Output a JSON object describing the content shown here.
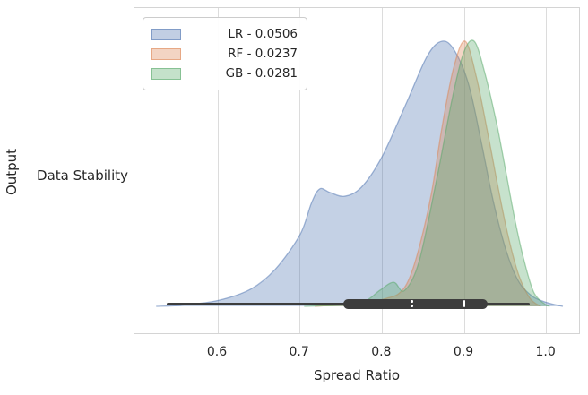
{
  "figure": {
    "background": "#ffffff",
    "plot_border_color": "#d4d4d4",
    "grid_color": "#dcdcdc",
    "text_color": "#262626",
    "box_overlay_color": "#3d3d3d"
  },
  "axes": {
    "xlabel": "Spread Ratio",
    "ylabel": "Output",
    "ytick_label": "Data Stability"
  },
  "legend": {
    "items": [
      {
        "label": "LR - 0.0506",
        "fill": "rgba(76,114,176,0.35)",
        "border": "rgba(76,114,176,0.55)"
      },
      {
        "label": "RF - 0.0237",
        "fill": "rgba(221,132,82,0.35)",
        "border": "rgba(221,132,82,0.55)"
      },
      {
        "label": "GB - 0.0281",
        "fill": "rgba(85,168,104,0.35)",
        "border": "rgba(85,168,104,0.55)"
      }
    ]
  },
  "chart_data": {
    "type": "area",
    "subtype": "kde-density",
    "title": "",
    "xlabel": "Spread Ratio",
    "ylabel": "Output",
    "category_row_label": "Data Stability",
    "xlim": [
      0.498,
      1.043
    ],
    "xticks": [
      0.6,
      0.7,
      0.8,
      0.9,
      1.0
    ],
    "grid": "vertical-only",
    "legend_position": "upper-left",
    "series": [
      {
        "name": "LR",
        "legend_label": "LR - 0.0506",
        "color": "#4c72b0",
        "points": [
          [
            0.525,
            0
          ],
          [
            0.555,
            0.004
          ],
          [
            0.6,
            0.022
          ],
          [
            0.64,
            0.065
          ],
          [
            0.67,
            0.14
          ],
          [
            0.7,
            0.27
          ],
          [
            0.714,
            0.39
          ],
          [
            0.724,
            0.443
          ],
          [
            0.736,
            0.43
          ],
          [
            0.754,
            0.415
          ],
          [
            0.775,
            0.45
          ],
          [
            0.8,
            0.565
          ],
          [
            0.83,
            0.77
          ],
          [
            0.855,
            0.945
          ],
          [
            0.873,
            1.0
          ],
          [
            0.888,
            0.965
          ],
          [
            0.905,
            0.84
          ],
          [
            0.92,
            0.63
          ],
          [
            0.935,
            0.4
          ],
          [
            0.95,
            0.22
          ],
          [
            0.965,
            0.1
          ],
          [
            0.982,
            0.04
          ],
          [
            1.0,
            0.015
          ],
          [
            1.02,
            0
          ]
        ]
      },
      {
        "name": "RF",
        "legend_label": "RF - 0.0237",
        "color": "#dd8452",
        "points": [
          [
            0.718,
            0
          ],
          [
            0.78,
            0.014
          ],
          [
            0.805,
            0.03
          ],
          [
            0.821,
            0.05
          ],
          [
            0.833,
            0.105
          ],
          [
            0.846,
            0.233
          ],
          [
            0.86,
            0.426
          ],
          [
            0.873,
            0.679
          ],
          [
            0.887,
            0.9
          ],
          [
            0.901,
            1.0
          ],
          [
            0.915,
            0.86
          ],
          [
            0.93,
            0.63
          ],
          [
            0.941,
            0.45
          ],
          [
            0.953,
            0.27
          ],
          [
            0.966,
            0.12
          ],
          [
            0.98,
            0.03
          ],
          [
            0.993,
            0
          ]
        ]
      },
      {
        "name": "GB",
        "legend_label": "GB - 0.0281",
        "color": "#55a868",
        "points": [
          [
            0.705,
            0
          ],
          [
            0.75,
            0.006
          ],
          [
            0.78,
            0.022
          ],
          [
            0.797,
            0.06
          ],
          [
            0.814,
            0.091
          ],
          [
            0.827,
            0.059
          ],
          [
            0.845,
            0.17
          ],
          [
            0.867,
            0.49
          ],
          [
            0.885,
            0.78
          ],
          [
            0.899,
            0.955
          ],
          [
            0.912,
            1.0
          ],
          [
            0.925,
            0.88
          ],
          [
            0.94,
            0.68
          ],
          [
            0.951,
            0.5
          ],
          [
            0.962,
            0.32
          ],
          [
            0.973,
            0.17
          ],
          [
            0.985,
            0.05
          ],
          [
            1.0,
            0.004
          ],
          [
            1.004,
            0
          ]
        ]
      }
    ],
    "box_overlay": {
      "whisker_range": [
        0.538,
        0.98
      ],
      "box_range": [
        0.753,
        0.928
      ],
      "mark_dashed": 0.836,
      "mark_solid": 0.9
    }
  }
}
